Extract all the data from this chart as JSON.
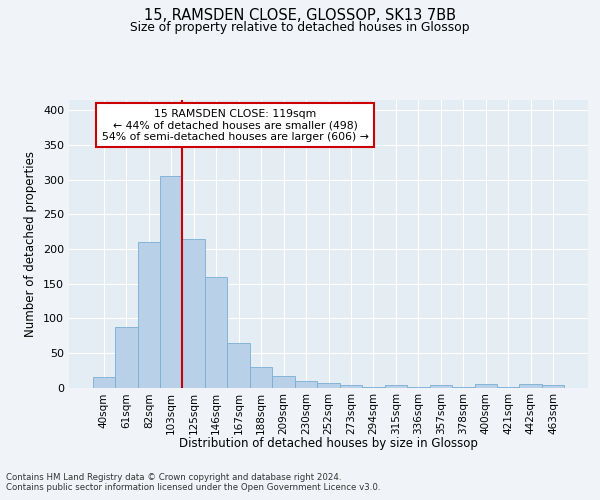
{
  "title1": "15, RAMSDEN CLOSE, GLOSSOP, SK13 7BB",
  "title2": "Size of property relative to detached houses in Glossop",
  "xlabel": "Distribution of detached houses by size in Glossop",
  "ylabel": "Number of detached properties",
  "categories": [
    "40sqm",
    "61sqm",
    "82sqm",
    "103sqm",
    "125sqm",
    "146sqm",
    "167sqm",
    "188sqm",
    "209sqm",
    "230sqm",
    "252sqm",
    "273sqm",
    "294sqm",
    "315sqm",
    "336sqm",
    "357sqm",
    "378sqm",
    "400sqm",
    "421sqm",
    "442sqm",
    "463sqm"
  ],
  "bar_heights": [
    15,
    88,
    210,
    305,
    215,
    160,
    64,
    30,
    17,
    10,
    7,
    4,
    1,
    3,
    1,
    4,
    1,
    5,
    1,
    5,
    3
  ],
  "bar_color": "#b8d0e8",
  "bar_edge_color": "#7aaed4",
  "ylim": [
    0,
    415
  ],
  "yticks": [
    0,
    50,
    100,
    150,
    200,
    250,
    300,
    350,
    400
  ],
  "vline_x_index": 4,
  "vline_color": "#cc0000",
  "annotation_text": "15 RAMSDEN CLOSE: 119sqm\n← 44% of detached houses are smaller (498)\n54% of semi-detached houses are larger (606) →",
  "annotation_box_color": "#ffffff",
  "annotation_box_edge": "#cc0000",
  "footer": "Contains HM Land Registry data © Crown copyright and database right 2024.\nContains public sector information licensed under the Open Government Licence v3.0.",
  "background_color": "#f0f4f8",
  "plot_bg_color": "#e4ecf4",
  "grid_color": "#ffffff"
}
